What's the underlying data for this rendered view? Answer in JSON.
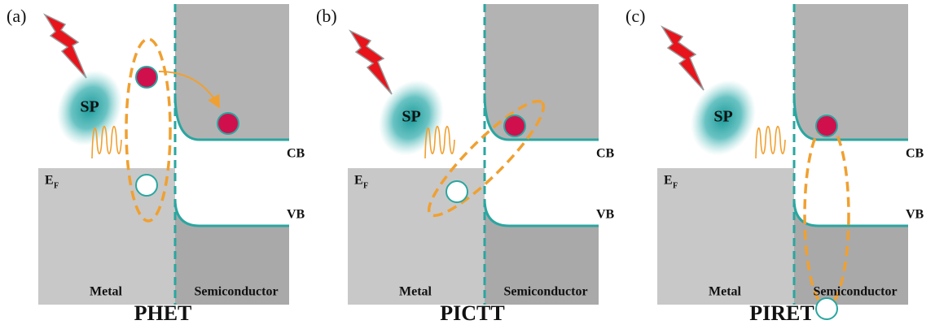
{
  "panels": [
    {
      "label": "(a)",
      "sp": "SP",
      "cb": "CB",
      "vb": "VB",
      "fermi": {
        "symbol": "E",
        "subscript": "F"
      },
      "metal": "Metal",
      "semiconductor": "Semiconductor",
      "title": "PHET"
    },
    {
      "label": "(b)",
      "sp": "SP",
      "cb": "CB",
      "vb": "VB",
      "fermi": {
        "symbol": "E",
        "subscript": "F"
      },
      "metal": "Metal",
      "semiconductor": "Semiconductor",
      "title": "PICTT"
    },
    {
      "label": "(c)",
      "sp": "SP",
      "cb": "CB",
      "vb": "VB",
      "fermi": {
        "symbol": "E",
        "subscript": "F"
      },
      "metal": "Metal",
      "semiconductor": "Semiconductor",
      "title": "PIRET"
    }
  ]
}
